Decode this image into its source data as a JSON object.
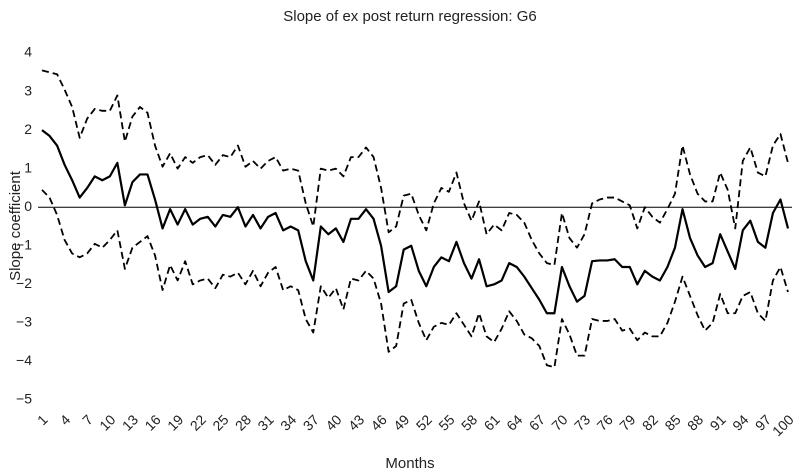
{
  "chart_data": {
    "type": "line",
    "title": "Slope of ex post return regression: G6",
    "x_label": "Months",
    "y_label": "Slope coefficient",
    "x": [
      1,
      2,
      3,
      4,
      5,
      6,
      7,
      8,
      9,
      10,
      11,
      12,
      13,
      14,
      15,
      16,
      17,
      18,
      19,
      20,
      21,
      22,
      23,
      24,
      25,
      26,
      27,
      28,
      29,
      30,
      31,
      32,
      33,
      34,
      35,
      36,
      37,
      38,
      39,
      40,
      41,
      42,
      43,
      44,
      45,
      46,
      47,
      48,
      49,
      50,
      51,
      52,
      53,
      54,
      55,
      56,
      57,
      58,
      59,
      60,
      61,
      62,
      63,
      64,
      65,
      66,
      67,
      68,
      69,
      70,
      71,
      72,
      73,
      74,
      75,
      76,
      77,
      78,
      79,
      80,
      81,
      82,
      83,
      84,
      85,
      86,
      87,
      88,
      89,
      90,
      91,
      92,
      93,
      94,
      95,
      96,
      97,
      98,
      99,
      100
    ],
    "xlim": [
      1,
      100
    ],
    "xticks": [
      1,
      4,
      7,
      10,
      13,
      16,
      19,
      22,
      25,
      28,
      31,
      34,
      37,
      40,
      43,
      46,
      49,
      52,
      55,
      58,
      61,
      64,
      67,
      70,
      73,
      76,
      79,
      82,
      85,
      88,
      91,
      94,
      97,
      100
    ],
    "ylim": [
      -5,
      4
    ],
    "yticks": [
      {
        "value": -5,
        "label": "−5"
      },
      {
        "value": -4,
        "label": "−4"
      },
      {
        "value": -3,
        "label": "−3"
      },
      {
        "value": -2,
        "label": "−2"
      },
      {
        "value": -1,
        "label": "−1"
      },
      0,
      1,
      2,
      3,
      4
    ],
    "zero_line": true,
    "series": [
      {
        "color": "#000000",
        "style": "solid",
        "values": [
          2.0,
          1.85,
          1.6,
          1.1,
          0.7,
          0.25,
          0.5,
          0.8,
          0.7,
          0.8,
          1.15,
          0.05,
          0.65,
          0.85,
          0.85,
          0.2,
          -0.55,
          -0.05,
          -0.45,
          -0.05,
          -0.45,
          -0.3,
          -0.25,
          -0.5,
          -0.2,
          -0.25,
          0.0,
          -0.5,
          -0.2,
          -0.55,
          -0.25,
          -0.15,
          -0.6,
          -0.5,
          -0.6,
          -1.4,
          -1.9,
          -0.5,
          -0.7,
          -0.55,
          -0.9,
          -0.3,
          -0.3,
          -0.05,
          -0.3,
          -1.0,
          -2.2,
          -2.05,
          -1.1,
          -1.0,
          -1.65,
          -2.05,
          -1.55,
          -1.3,
          -1.4,
          -0.9,
          -1.45,
          -1.85,
          -1.35,
          -2.05,
          -2.0,
          -1.9,
          -1.45,
          -1.55,
          -1.8,
          -2.1,
          -2.4,
          -2.75,
          -2.75,
          -1.55,
          -2.05,
          -2.45,
          -2.3,
          -1.4,
          -1.38,
          -1.38,
          -1.35,
          -1.55,
          -1.55,
          -2.0,
          -1.65,
          -1.8,
          -1.9,
          -1.55,
          -1.05,
          -0.05,
          -0.8,
          -1.25,
          -1.55,
          -1.45,
          -0.7,
          -1.15,
          -1.6,
          -0.6,
          -0.35,
          -0.9,
          -1.05,
          -0.15,
          0.2,
          -0.55
        ]
      },
      {
        "color": "#000000",
        "style": "dashed",
        "values": [
          3.55,
          3.5,
          3.45,
          3.05,
          2.6,
          1.8,
          2.3,
          2.55,
          2.5,
          2.5,
          2.9,
          1.7,
          2.35,
          2.6,
          2.45,
          1.6,
          1.05,
          1.4,
          1.0,
          1.3,
          1.15,
          1.3,
          1.35,
          1.1,
          1.35,
          1.3,
          1.6,
          1.05,
          1.2,
          1.0,
          1.2,
          1.3,
          0.95,
          1.0,
          0.95,
          0.1,
          -0.5,
          1.0,
          0.95,
          1.0,
          0.8,
          1.3,
          1.3,
          1.55,
          1.3,
          0.5,
          -0.65,
          -0.5,
          0.3,
          0.35,
          -0.2,
          -0.6,
          0.1,
          0.5,
          0.4,
          0.9,
          0.1,
          -0.35,
          0.15,
          -0.7,
          -0.45,
          -0.6,
          -0.15,
          -0.2,
          -0.4,
          -0.85,
          -1.2,
          -1.45,
          -1.5,
          -0.15,
          -0.8,
          -1.05,
          -0.7,
          0.1,
          0.2,
          0.25,
          0.25,
          0.15,
          0.05,
          -0.55,
          0.0,
          -0.25,
          -0.4,
          -0.05,
          0.35,
          1.6,
          0.85,
          0.35,
          0.15,
          0.15,
          0.9,
          0.45,
          -0.55,
          1.2,
          1.55,
          0.9,
          0.8,
          1.6,
          1.9,
          1.15
        ]
      },
      {
        "color": "#000000",
        "style": "dashed",
        "values": [
          0.45,
          0.25,
          -0.2,
          -0.85,
          -1.2,
          -1.3,
          -1.2,
          -0.95,
          -1.05,
          -0.85,
          -0.6,
          -1.6,
          -1.05,
          -0.9,
          -0.75,
          -1.25,
          -2.15,
          -1.5,
          -1.9,
          -1.4,
          -2.0,
          -1.9,
          -1.85,
          -2.1,
          -1.75,
          -1.8,
          -1.7,
          -2.0,
          -1.65,
          -2.05,
          -1.7,
          -1.55,
          -2.15,
          -2.05,
          -2.15,
          -2.9,
          -3.25,
          -2.05,
          -2.35,
          -2.1,
          -2.65,
          -1.85,
          -1.9,
          -1.65,
          -1.85,
          -2.5,
          -3.75,
          -3.6,
          -2.5,
          -2.4,
          -3.0,
          -3.45,
          -3.1,
          -3.0,
          -3.05,
          -2.75,
          -3.05,
          -3.35,
          -2.75,
          -3.35,
          -3.5,
          -3.15,
          -2.7,
          -2.95,
          -3.3,
          -3.4,
          -3.6,
          -4.1,
          -4.15,
          -2.9,
          -3.3,
          -3.85,
          -3.85,
          -2.9,
          -2.95,
          -2.95,
          -2.9,
          -3.2,
          -3.15,
          -3.45,
          -3.25,
          -3.35,
          -3.35,
          -3.0,
          -2.45,
          -1.8,
          -2.3,
          -2.8,
          -3.2,
          -3.0,
          -2.25,
          -2.75,
          -2.75,
          -2.3,
          -2.2,
          -2.75,
          -2.95,
          -1.9,
          -1.55,
          -2.2
        ]
      }
    ]
  }
}
